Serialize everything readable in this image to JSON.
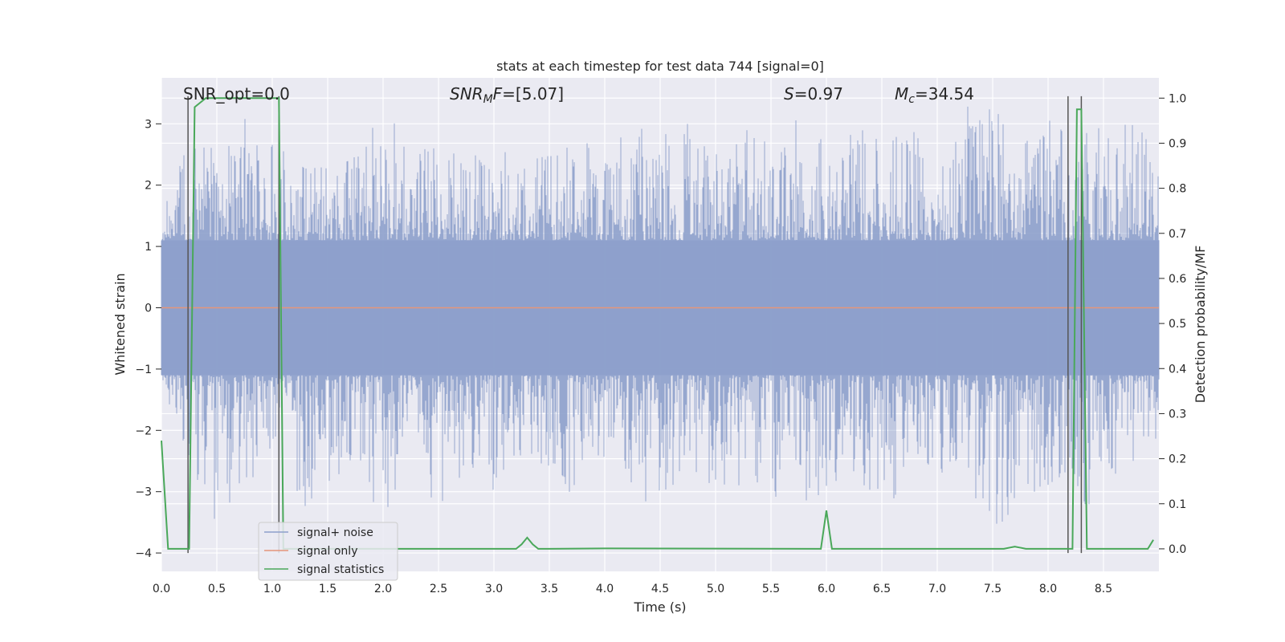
{
  "chart_data": {
    "type": "line",
    "title": "stats at each timestep for test data 744 [signal=0]",
    "xlabel": "Time (s)",
    "ylabel": "Whitened strain",
    "ylabel_right": "Detection probability/MF",
    "xlim": [
      0.0,
      9.0
    ],
    "ylim": [
      -4.3,
      3.75
    ],
    "ylim_right": [
      -0.05,
      1.045
    ],
    "x_ticks": [
      "0.0",
      "0.5",
      "1.0",
      "1.5",
      "2.0",
      "2.5",
      "3.0",
      "3.5",
      "4.0",
      "4.5",
      "5.0",
      "5.5",
      "6.0",
      "6.5",
      "7.0",
      "7.5",
      "8.0",
      "8.5"
    ],
    "y_ticks": [
      "3",
      "2",
      "1",
      "0",
      "−1",
      "−2",
      "−3",
      "−4"
    ],
    "y_ticks_right": [
      "1.0",
      "0.9",
      "0.8",
      "0.7",
      "0.6",
      "0.5",
      "0.4",
      "0.3",
      "0.2",
      "0.1",
      "0.0"
    ],
    "grid": true,
    "legend_position": "bottom-left",
    "annotations": {
      "snr_opt": "SNR_opt=0.0",
      "snr_mf_main": "SNR",
      "snr_mf_sub": "M",
      "snr_mf_suffix": "F",
      "snr_mf_value": "=[5.07]",
      "s_symbol": "S",
      "s_value": "=0.97",
      "mc_main": "M",
      "mc_sub": "c",
      "mc_value": "=34.54"
    },
    "series": [
      {
        "name": "signal+ noise",
        "color": "#8da0cb",
        "envelope_upper": [
          [
            0.0,
            2.1
          ],
          [
            0.25,
            2.7
          ],
          [
            0.5,
            2.6
          ],
          [
            0.75,
            3.3
          ],
          [
            1.0,
            2.7
          ],
          [
            1.25,
            2.4
          ],
          [
            1.5,
            2.4
          ],
          [
            1.75,
            2.5
          ],
          [
            2.0,
            3.2
          ],
          [
            2.25,
            2.8
          ],
          [
            2.5,
            2.6
          ],
          [
            2.75,
            2.7
          ],
          [
            3.0,
            2.6
          ],
          [
            3.25,
            2.6
          ],
          [
            3.5,
            2.5
          ],
          [
            3.75,
            2.8
          ],
          [
            4.0,
            2.5
          ],
          [
            4.25,
            3.0
          ],
          [
            4.5,
            2.9
          ],
          [
            4.75,
            3.0
          ],
          [
            5.0,
            2.5
          ],
          [
            5.25,
            3.0
          ],
          [
            5.5,
            2.7
          ],
          [
            5.75,
            3.1
          ],
          [
            6.0,
            2.7
          ],
          [
            6.25,
            3.1
          ],
          [
            6.5,
            3.0
          ],
          [
            6.75,
            2.9
          ],
          [
            7.0,
            2.8
          ],
          [
            7.25,
            3.4
          ],
          [
            7.5,
            3.3
          ],
          [
            7.75,
            2.7
          ],
          [
            8.0,
            3.1
          ],
          [
            8.25,
            3.0
          ],
          [
            8.5,
            3.1
          ],
          [
            8.75,
            3.2
          ],
          [
            9.0,
            3.0
          ]
        ],
        "envelope_lower": [
          [
            0.0,
            -1.1
          ],
          [
            0.25,
            -2.9
          ],
          [
            0.5,
            -4.0
          ],
          [
            0.75,
            -3.1
          ],
          [
            1.0,
            -2.3
          ],
          [
            1.25,
            -3.5
          ],
          [
            1.5,
            -2.9
          ],
          [
            1.75,
            -2.6
          ],
          [
            2.0,
            -3.5
          ],
          [
            2.25,
            -2.3
          ],
          [
            2.5,
            -3.4
          ],
          [
            2.75,
            -2.8
          ],
          [
            3.0,
            -3.1
          ],
          [
            3.25,
            -2.4
          ],
          [
            3.5,
            -2.6
          ],
          [
            3.75,
            -3.2
          ],
          [
            4.0,
            -2.5
          ],
          [
            4.25,
            -3.0
          ],
          [
            4.5,
            -3.6
          ],
          [
            4.75,
            -2.8
          ],
          [
            5.0,
            -2.9
          ],
          [
            5.25,
            -3.1
          ],
          [
            5.5,
            -3.2
          ],
          [
            5.75,
            -3.3
          ],
          [
            6.0,
            -3.0
          ],
          [
            6.25,
            -2.7
          ],
          [
            6.5,
            -3.6
          ],
          [
            6.75,
            -2.6
          ],
          [
            7.0,
            -3.0
          ],
          [
            7.25,
            -2.9
          ],
          [
            7.5,
            -3.8
          ],
          [
            7.75,
            -3.3
          ],
          [
            8.0,
            -3.0
          ],
          [
            8.25,
            -4.0
          ],
          [
            8.5,
            -3.3
          ],
          [
            8.75,
            -3.1
          ],
          [
            9.0,
            -2.5
          ]
        ]
      },
      {
        "name": "signal only",
        "color": "#e5957a",
        "x": [
          0.0,
          9.0
        ],
        "y": [
          0.0,
          0.0
        ]
      },
      {
        "name": "signal statistics",
        "color": "#4aa85a",
        "x": [
          0.0,
          0.06,
          0.25,
          0.3,
          0.35,
          0.4,
          1.0,
          1.06,
          1.1,
          1.15,
          3.2,
          3.25,
          3.3,
          3.35,
          3.4,
          3.5,
          4.0,
          5.9,
          5.95,
          6.0,
          6.05,
          6.1,
          7.6,
          7.7,
          7.8,
          7.9,
          8.0,
          8.18,
          8.22,
          8.26,
          8.3,
          8.35,
          8.4,
          8.5,
          8.9,
          8.95
        ],
        "y": [
          0.24,
          0.0,
          0.0,
          0.98,
          0.99,
          1.0,
          1.0,
          1.0,
          0.0,
          0.0,
          0.0,
          0.01,
          0.025,
          0.01,
          0.0,
          0.0,
          0.001,
          0.0,
          0.0,
          0.085,
          0.0,
          0.0,
          0.0,
          0.005,
          0.0,
          0.0,
          0.0,
          0.0,
          0.0,
          0.975,
          0.975,
          0.0,
          0.0,
          0.0,
          0.0,
          0.02
        ]
      }
    ],
    "vertical_lines": [
      0.24,
      1.06,
      8.18,
      8.3
    ]
  }
}
